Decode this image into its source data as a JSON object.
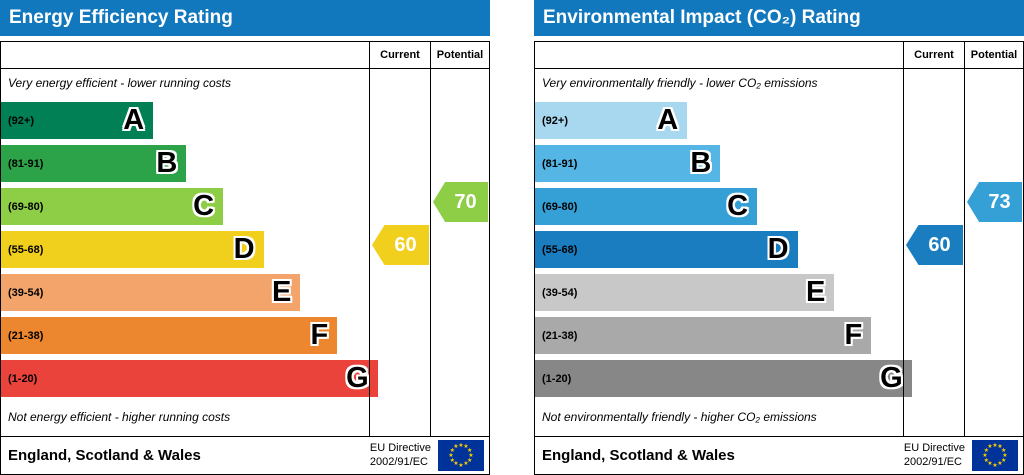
{
  "chart_data": [
    {
      "type": "bar",
      "variant": "epc-rating",
      "title": "Energy Efficiency Rating",
      "columns": [
        "Current",
        "Potential"
      ],
      "top_note": "Very energy efficient - lower running costs",
      "bottom_note": "Not energy efficient - higher running costs",
      "header_color": "#1278BE",
      "bands": [
        {
          "range": "(92+)",
          "letter": "A",
          "color": "#008054",
          "width_pct": 37
        },
        {
          "range": "(81-91)",
          "letter": "B",
          "color": "#2DA349",
          "width_pct": 46
        },
        {
          "range": "(69-80)",
          "letter": "C",
          "color": "#8DCE46",
          "width_pct": 56
        },
        {
          "range": "(55-68)",
          "letter": "D",
          "color": "#F1CF1D",
          "width_pct": 67
        },
        {
          "range": "(39-54)",
          "letter": "E",
          "color": "#F2A46A",
          "width_pct": 77
        },
        {
          "range": "(21-38)",
          "letter": "F",
          "color": "#ED872F",
          "width_pct": 87
        },
        {
          "range": "(1-20)",
          "letter": "G",
          "color": "#E9433C",
          "width_pct": 98
        }
      ],
      "current": {
        "value": 60,
        "band_letter": "D",
        "color": "#F1CF1D"
      },
      "potential": {
        "value": 70,
        "band_letter": "C",
        "color": "#8DCE46"
      },
      "footer": {
        "region": "England, Scotland & Wales",
        "directive": [
          "EU Directive",
          "2002/91/EC"
        ]
      }
    },
    {
      "type": "bar",
      "variant": "epc-rating",
      "title": "Environmental Impact (CO₂) Rating",
      "columns": [
        "Current",
        "Potential"
      ],
      "top_note": "Very environmentally friendly - lower CO₂ emissions",
      "bottom_note": "Not environmentally friendly - higher CO₂ emissions",
      "header_color": "#1278BE",
      "bands": [
        {
          "range": "(92+)",
          "letter": "A",
          "color": "#A7D8EF",
          "width_pct": 37
        },
        {
          "range": "(81-91)",
          "letter": "B",
          "color": "#55B5E5",
          "width_pct": 46
        },
        {
          "range": "(69-80)",
          "letter": "C",
          "color": "#35A0D6",
          "width_pct": 56
        },
        {
          "range": "(55-68)",
          "letter": "D",
          "color": "#1A7DC0",
          "width_pct": 67
        },
        {
          "range": "(39-54)",
          "letter": "E",
          "color": "#C8C8C8",
          "width_pct": 77
        },
        {
          "range": "(21-38)",
          "letter": "F",
          "color": "#A9A9A9",
          "width_pct": 87
        },
        {
          "range": "(1-20)",
          "letter": "G",
          "color": "#878787",
          "width_pct": 98
        }
      ],
      "current": {
        "value": 60,
        "band_letter": "D",
        "color": "#1A7DC0"
      },
      "potential": {
        "value": 73,
        "band_letter": "C",
        "color": "#35A0D6"
      },
      "footer": {
        "region": "England, Scotland & Wales",
        "directive": [
          "EU Directive",
          "2002/91/EC"
        ]
      }
    }
  ],
  "eu_flag": {
    "background": "#003399",
    "star_color": "#FFCC00"
  }
}
